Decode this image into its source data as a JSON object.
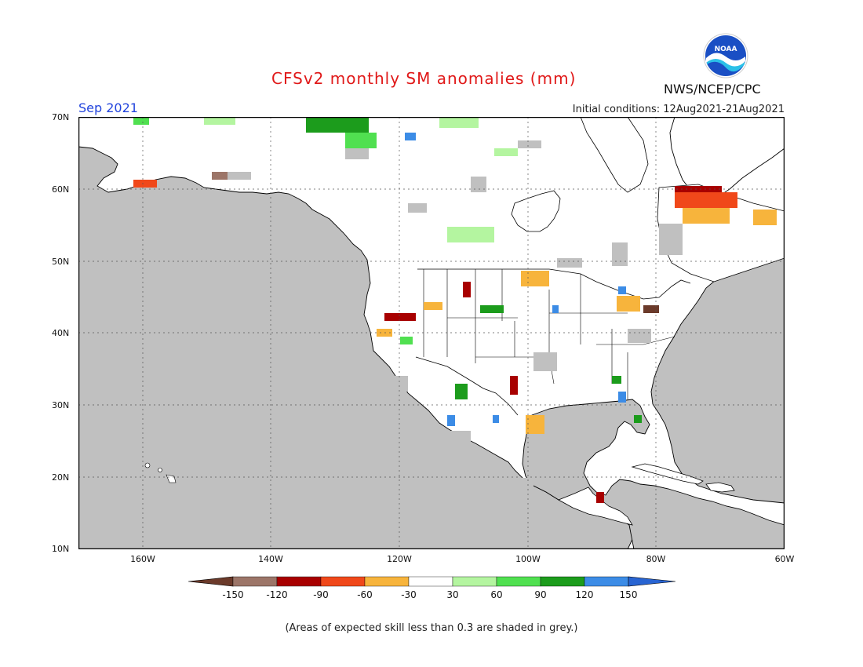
{
  "header": {
    "title": "CFSv2 monthly SM anomalies (mm)",
    "month": "Sep 2021",
    "initial_conditions": "Initial conditions: 12Aug2021-21Aug2021",
    "agency": "NWS/NCEP/CPC",
    "logo_text": "NOAA"
  },
  "map": {
    "lon_range": [
      -172,
      -60
    ],
    "lat_range": [
      10,
      70
    ],
    "grid": true,
    "lat_labels": [
      "70N",
      "60N",
      "50N",
      "40N",
      "30N",
      "20N",
      "10N"
    ],
    "lon_labels": [
      "160W",
      "140W",
      "120W",
      "100W",
      "80W",
      "60W"
    ],
    "colors": {
      "ocean_grey": "#c0c0c0",
      "land_white": "#ffffff"
    }
  },
  "legend": {
    "labels": [
      "-150",
      "-120",
      "-90",
      "-60",
      "-30",
      "30",
      "60",
      "90",
      "120",
      "150"
    ],
    "colors": [
      "#6b3a2a",
      "#9c7568",
      "#a80000",
      "#f0481a",
      "#f7b43c",
      "#ffffff",
      "#b4f5a0",
      "#50e050",
      "#1c9c1c",
      "#3c8ce6",
      "#2864d2"
    ]
  },
  "footnote": "(Areas of expected skill less than 0.3 are shaded in grey.)"
}
